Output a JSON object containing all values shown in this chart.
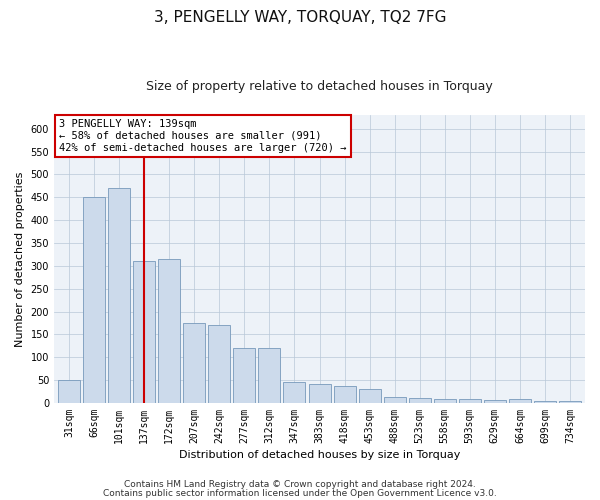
{
  "title": "3, PENGELLY WAY, TORQUAY, TQ2 7FG",
  "subtitle": "Size of property relative to detached houses in Torquay",
  "xlabel": "Distribution of detached houses by size in Torquay",
  "ylabel": "Number of detached properties",
  "categories": [
    "31sqm",
    "66sqm",
    "101sqm",
    "137sqm",
    "172sqm",
    "207sqm",
    "242sqm",
    "277sqm",
    "312sqm",
    "347sqm",
    "383sqm",
    "418sqm",
    "453sqm",
    "488sqm",
    "523sqm",
    "558sqm",
    "593sqm",
    "629sqm",
    "664sqm",
    "699sqm",
    "734sqm"
  ],
  "values": [
    50,
    450,
    470,
    310,
    315,
    175,
    170,
    120,
    120,
    45,
    42,
    38,
    30,
    14,
    10,
    9,
    8,
    7,
    9,
    5,
    4
  ],
  "bar_color": "#ccdaeb",
  "bar_edge_color": "#7799bb",
  "vline_x_index": 3,
  "vline_color": "#cc0000",
  "annotation_text": "3 PENGELLY WAY: 139sqm\n← 58% of detached houses are smaller (991)\n42% of semi-detached houses are larger (720) →",
  "annotation_box_color": "#ffffff",
  "annotation_box_edge": "#cc0000",
  "ylim": [
    0,
    630
  ],
  "yticks": [
    0,
    50,
    100,
    150,
    200,
    250,
    300,
    350,
    400,
    450,
    500,
    550,
    600
  ],
  "footer1": "Contains HM Land Registry data © Crown copyright and database right 2024.",
  "footer2": "Contains public sector information licensed under the Open Government Licence v3.0.",
  "plot_bg_color": "#edf2f8",
  "title_fontsize": 11,
  "subtitle_fontsize": 9,
  "axis_label_fontsize": 8,
  "tick_fontsize": 7,
  "annotation_fontsize": 7.5,
  "footer_fontsize": 6.5
}
